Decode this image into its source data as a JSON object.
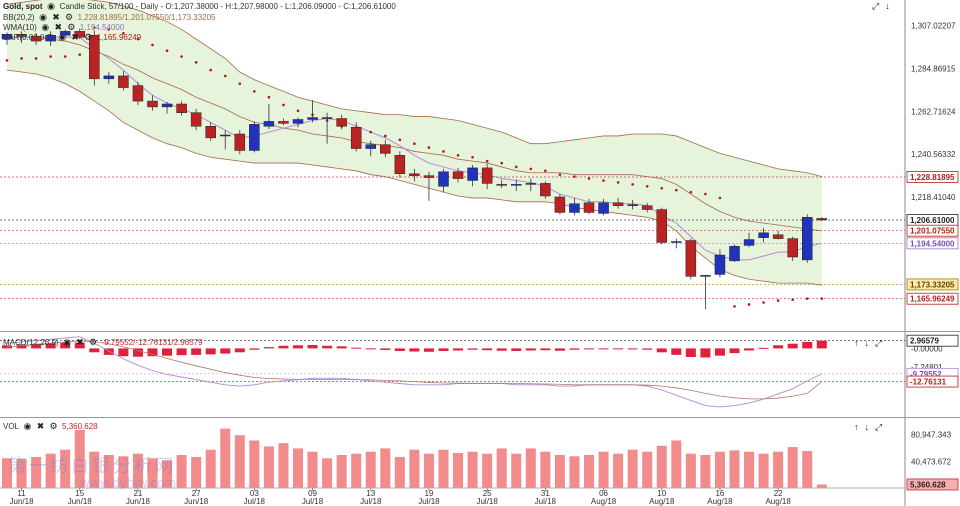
{
  "header": {
    "symbol": "Gold, spot",
    "info": "Candle Stick, 57/100 - Daily - O:1,207.38000 - H:1,207.98000 - L:1,206.09000 - C:1,206.61000"
  },
  "indicators": {
    "bb": {
      "label": "BB(20,2)",
      "values": "1,228.81895/1,201.07550/1,173.33205"
    },
    "wma": {
      "label": "WMA(10)",
      "values": "1,194.54000"
    },
    "sar": {
      "label": "SAR(0.02,0.2)",
      "values": "1,165.96249"
    },
    "macd": {
      "label": "MACD(12,26,9)",
      "values": "-9.79552/-12.76131/2.96579"
    },
    "vol": {
      "label": "VOL",
      "values": "5,360.628"
    }
  },
  "colors": {
    "up": "#2233bb",
    "down": "#bb2222",
    "band_fill": "#e6f4dc",
    "band_line": "#a5694a",
    "wma": "#b38ad6",
    "sar": "#b01818",
    "vol": "#f28b8b",
    "macd_hist": "#e0203c"
  },
  "price_axis": {
    "ticks": [
      "1,307.02207",
      "1,284.86915",
      "1,262.71624",
      "1,240.56332",
      "1,218.41040"
    ],
    "badges": [
      {
        "text": "1,228.81895",
        "kind": "bb_upper"
      },
      {
        "text": "1,206.61000",
        "kind": "last"
      },
      {
        "text": "1,201.07550",
        "kind": "bb_mid"
      },
      {
        "text": "1,194.54000",
        "kind": "wma"
      },
      {
        "text": "1,173.33205",
        "kind": "bb_lower"
      },
      {
        "text": "1,165.96249",
        "kind": "sar"
      }
    ]
  },
  "macd_axis": {
    "ticks": [
      "-0.00000",
      "-7.24801"
    ],
    "badges": [
      {
        "text": "2.96579",
        "kind": "hist"
      },
      {
        "text": "-9.79552",
        "kind": "macd"
      },
      {
        "text": "-12.76131",
        "kind": "signal"
      }
    ]
  },
  "vol_axis": {
    "ticks": [
      "80,947.343",
      "40,473.672"
    ],
    "badge": "5,360.628"
  },
  "x_axis": {
    "labels": [
      {
        "day": "11",
        "month": "Jun/18"
      },
      {
        "day": "15",
        "month": "Jun/18"
      },
      {
        "day": "21",
        "month": "Jun/18"
      },
      {
        "day": "27",
        "month": "Jun/18"
      },
      {
        "day": "03",
        "month": "Jul/18"
      },
      {
        "day": "09",
        "month": "Jul/18"
      },
      {
        "day": "13",
        "month": "Jul/18"
      },
      {
        "day": "19",
        "month": "Jul/18"
      },
      {
        "day": "25",
        "month": "Jul/18"
      },
      {
        "day": "31",
        "month": "Jul/18"
      },
      {
        "day": "06",
        "month": "Aug/18"
      },
      {
        "day": "10",
        "month": "Aug/18"
      },
      {
        "day": "16",
        "month": "Aug/18"
      },
      {
        "day": "22",
        "month": "Aug/18"
      }
    ]
  },
  "watermark": {
    "line1": "第一纺白银分析网",
    "line2": "www.dyhjw.com"
  },
  "chart_data": {
    "type": "candlestick",
    "candles": [
      [
        1300.0,
        1303.5,
        1297.0,
        1302.5
      ],
      [
        1302.5,
        1304.0,
        1298.0,
        1301.5
      ],
      [
        1301.5,
        1303.0,
        1297.0,
        1299.0
      ],
      [
        1299.0,
        1304.0,
        1296.5,
        1302.0
      ],
      [
        1302.0,
        1305.0,
        1300.5,
        1304.0
      ],
      [
        1304.0,
        1305.5,
        1300.0,
        1301.0
      ],
      [
        1302.0,
        1304.5,
        1276.0,
        1279.5
      ],
      [
        1279.5,
        1283.0,
        1277.0,
        1281.0
      ],
      [
        1281.0,
        1283.5,
        1273.5,
        1275.0
      ],
      [
        1276.0,
        1278.0,
        1266.0,
        1268.0
      ],
      [
        1268.0,
        1271.0,
        1263.0,
        1265.0
      ],
      [
        1265.0,
        1267.5,
        1261.5,
        1266.5
      ],
      [
        1266.5,
        1268.0,
        1260.5,
        1262.0
      ],
      [
        1262.0,
        1264.0,
        1253.0,
        1255.0
      ],
      [
        1255.0,
        1257.0,
        1247.5,
        1249.0
      ],
      [
        1250.0,
        1253.0,
        1243.0,
        1250.5
      ],
      [
        1251.0,
        1253.0,
        1240.5,
        1242.5
      ],
      [
        1242.5,
        1257.5,
        1241.5,
        1256.0
      ],
      [
        1255.0,
        1266.5,
        1253.5,
        1257.5
      ],
      [
        1257.5,
        1259.0,
        1255.5,
        1256.5
      ],
      [
        1256.5,
        1259.5,
        1254.5,
        1258.5
      ],
      [
        1258.5,
        1268.5,
        1257.0,
        1259.5
      ],
      [
        1259.5,
        1262.0,
        1246.0,
        1259.5
      ],
      [
        1259.0,
        1261.0,
        1253.5,
        1255.0
      ],
      [
        1254.5,
        1257.0,
        1242.0,
        1243.5
      ],
      [
        1243.5,
        1247.5,
        1239.5,
        1245.5
      ],
      [
        1245.5,
        1248.0,
        1239.0,
        1241.0
      ],
      [
        1240.0,
        1242.0,
        1228.5,
        1230.5
      ],
      [
        1230.5,
        1233.0,
        1226.5,
        1229.5
      ],
      [
        1229.5,
        1231.5,
        1216.5,
        1228.5
      ],
      [
        1224.0,
        1233.0,
        1221.0,
        1231.5
      ],
      [
        1231.5,
        1233.5,
        1226.0,
        1228.0
      ],
      [
        1227.0,
        1235.0,
        1224.0,
        1233.5
      ],
      [
        1233.5,
        1235.5,
        1222.5,
        1225.5
      ],
      [
        1225.0,
        1227.5,
        1223.0,
        1224.5
      ],
      [
        1225.0,
        1227.5,
        1221.5,
        1225.0
      ],
      [
        1225.0,
        1228.0,
        1221.5,
        1225.5
      ],
      [
        1225.5,
        1226.5,
        1217.5,
        1219.0
      ],
      [
        1218.5,
        1220.0,
        1209.5,
        1210.5
      ],
      [
        1210.5,
        1218.0,
        1209.0,
        1215.0
      ],
      [
        1215.5,
        1217.5,
        1209.5,
        1210.5
      ],
      [
        1210.0,
        1217.5,
        1209.0,
        1215.5
      ],
      [
        1215.5,
        1218.0,
        1212.5,
        1214.0
      ],
      [
        1214.5,
        1217.0,
        1212.0,
        1214.5
      ],
      [
        1214.0,
        1215.5,
        1210.5,
        1212.0
      ],
      [
        1212.0,
        1213.0,
        1194.0,
        1195.0
      ],
      [
        1195.5,
        1197.0,
        1192.0,
        1195.5
      ],
      [
        1196.0,
        1197.0,
        1176.0,
        1177.5
      ],
      [
        1177.5,
        1178.0,
        1160.5,
        1178.0
      ],
      [
        1178.5,
        1191.5,
        1177.0,
        1188.5
      ],
      [
        1185.5,
        1194.0,
        1185.0,
        1193.0
      ],
      [
        1193.5,
        1200.0,
        1192.5,
        1196.5
      ],
      [
        1197.5,
        1202.5,
        1195.0,
        1200.0
      ],
      [
        1199.0,
        1201.0,
        1196.5,
        1197.0
      ],
      [
        1197.0,
        1198.0,
        1185.5,
        1187.5
      ],
      [
        1186.0,
        1209.5,
        1184.5,
        1208.0
      ],
      [
        1207.4,
        1208.0,
        1206.1,
        1206.6
      ]
    ],
    "bb_upper": [
      1318,
      1319,
      1320,
      1321,
      1321,
      1321,
      1320,
      1319,
      1317,
      1315,
      1312,
      1309,
      1305,
      1300,
      1295,
      1290,
      1283,
      1279,
      1276,
      1273,
      1270,
      1268,
      1266,
      1264,
      1263,
      1262,
      1261,
      1261,
      1260,
      1260,
      1259,
      1258,
      1256,
      1254,
      1252,
      1249,
      1246,
      1246,
      1247,
      1248,
      1249,
      1250,
      1250,
      1251,
      1251,
      1251,
      1250,
      1247,
      1244,
      1241,
      1239,
      1237,
      1235,
      1233,
      1232,
      1231,
      1229
    ],
    "bb_lower": [
      1284,
      1283,
      1282,
      1280,
      1277,
      1273,
      1268,
      1263,
      1257,
      1253,
      1249,
      1246,
      1244,
      1241,
      1239,
      1238,
      1237,
      1236,
      1236,
      1236,
      1236,
      1235,
      1234,
      1233,
      1232,
      1230,
      1229,
      1227,
      1225,
      1223,
      1221,
      1219,
      1218,
      1218,
      1217,
      1216,
      1216,
      1216,
      1215,
      1213,
      1212,
      1211,
      1210,
      1209,
      1208,
      1206,
      1201,
      1193,
      1187,
      1181,
      1178,
      1176,
      1175,
      1174,
      1174,
      1174,
      1173
    ],
    "bb_mid": [
      1301,
      1301,
      1301,
      1300,
      1299,
      1297,
      1294,
      1291,
      1287,
      1284,
      1280,
      1277,
      1274,
      1270,
      1267,
      1264,
      1260,
      1257,
      1256,
      1254,
      1253,
      1251,
      1250,
      1249,
      1247,
      1246,
      1245,
      1244,
      1242,
      1241,
      1240,
      1238,
      1237,
      1236,
      1234,
      1232,
      1231,
      1231,
      1231,
      1230,
      1230,
      1230,
      1230,
      1230,
      1229,
      1228,
      1225,
      1220,
      1215,
      1211,
      1208,
      1206,
      1205,
      1204,
      1203,
      1202,
      1201
    ],
    "wma": [
      1301,
      1301,
      1301,
      1301,
      1301,
      1301,
      1295,
      1290,
      1284,
      1277,
      1271,
      1267,
      1264,
      1261,
      1257,
      1253,
      1249,
      1250,
      1252,
      1254,
      1256,
      1258,
      1259,
      1258,
      1255,
      1252,
      1249,
      1245,
      1240,
      1236,
      1234,
      1232,
      1231,
      1230,
      1228,
      1227,
      1226,
      1224,
      1220,
      1218,
      1216,
      1216,
      1215,
      1215,
      1214,
      1209,
      1205,
      1198,
      1191,
      1188,
      1186,
      1186,
      1188,
      1190,
      1190,
      1193,
      1194.5
    ],
    "sar": [
      1289,
      1290,
      1290,
      1291,
      1291,
      1292,
      1306,
      1305,
      1303,
      1300,
      1297,
      1294,
      1291,
      1288,
      1284,
      1281,
      1277,
      1273,
      1270,
      1266,
      1263,
      1261,
      1258,
      1255,
      1254,
      1252,
      1250,
      1248,
      1246,
      1244,
      1242,
      1240,
      1239,
      1237,
      1236,
      1234,
      1233,
      1232,
      1230,
      1229,
      1228,
      1227,
      1226,
      1225,
      1224,
      1223,
      1222,
      1221,
      1220,
      1218,
      1162,
      1163,
      1164,
      1165,
      1165.5,
      1166,
      1166
    ],
    "volume": [
      45000,
      44000,
      47000,
      52000,
      58000,
      88000,
      55000,
      50000,
      48000,
      52000,
      45000,
      42000,
      50000,
      47000,
      58000,
      90000,
      80000,
      72000,
      63000,
      68000,
      60000,
      55000,
      45000,
      50000,
      52000,
      55000,
      60000,
      47000,
      58000,
      52000,
      58000,
      53000,
      55000,
      52000,
      60000,
      52000,
      60000,
      55000,
      50000,
      48000,
      50000,
      55000,
      52000,
      58000,
      55000,
      64000,
      72000,
      52000,
      50000,
      55000,
      57000,
      55000,
      52000,
      55000,
      62000,
      56000,
      5360.628
    ],
    "macd_hist": [
      1.2,
      1.5,
      1.8,
      2.0,
      2.1,
      2.2,
      -1.5,
      -2.5,
      -3.0,
      -3.2,
      -3.0,
      -2.8,
      -2.6,
      -2.5,
      -2.3,
      -2.0,
      -1.5,
      -0.5,
      0.5,
      1.0,
      1.2,
      1.3,
      1.0,
      0.8,
      0.3,
      -0.2,
      -0.6,
      -1.0,
      -1.2,
      -1.3,
      -1.0,
      -0.8,
      -0.5,
      -0.7,
      -0.9,
      -1.0,
      -0.8,
      -0.7,
      -0.9,
      -0.5,
      -0.3,
      -0.1,
      -0.2,
      -0.3,
      -0.5,
      -1.5,
      -2.5,
      -3.3,
      -3.5,
      -2.8,
      -1.8,
      -0.8,
      0.2,
      1.2,
      1.8,
      2.5,
      2.96579
    ],
    "macd_line": [
      2,
      2.5,
      3,
      3.5,
      4,
      4.5,
      2,
      -1,
      -4,
      -6.5,
      -8.5,
      -10,
      -11,
      -12,
      -13,
      -14,
      -14.5,
      -14,
      -13,
      -12.5,
      -12,
      -11.5,
      -11.5,
      -11.5,
      -12,
      -12.5,
      -13,
      -13.5,
      -14,
      -14,
      -14,
      -13.5,
      -13.5,
      -13.5,
      -13.5,
      -14,
      -14,
      -14,
      -14.5,
      -14.5,
      -14,
      -14,
      -14,
      -14,
      -14.5,
      -16,
      -18,
      -20,
      -22,
      -22.5,
      -22,
      -21,
      -19.5,
      -17.5,
      -15.5,
      -12.5,
      -9.79552
    ],
    "signal_line": [
      0.5,
      1,
      1.5,
      2,
      2.4,
      2.8,
      2.6,
      1.8,
      0.6,
      -0.8,
      -2.3,
      -3.9,
      -5.3,
      -6.7,
      -8,
      -9.3,
      -10.3,
      -11.2,
      -11.6,
      -11.8,
      -11.9,
      -11.9,
      -11.9,
      -11.9,
      -12,
      -12.1,
      -12.3,
      -12.5,
      -12.8,
      -13.1,
      -13.3,
      -13.3,
      -13.4,
      -13.4,
      -13.4,
      -13.5,
      -13.6,
      -13.7,
      -13.8,
      -14,
      -14,
      -14,
      -14,
      -14,
      -14.1,
      -14.5,
      -15.2,
      -16.1,
      -17.3,
      -18.3,
      -19,
      -19.4,
      -19.4,
      -19.1,
      -18.4,
      -17.3,
      -12.76131
    ]
  }
}
